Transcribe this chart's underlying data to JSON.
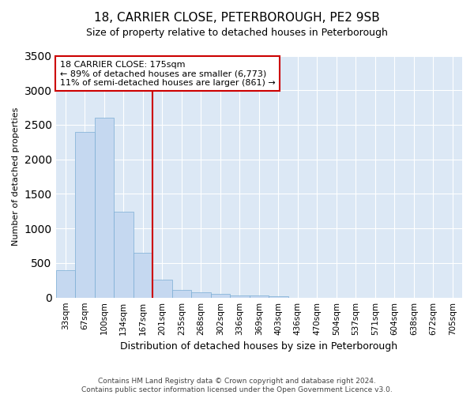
{
  "title": "18, CARRIER CLOSE, PETERBOROUGH, PE2 9SB",
  "subtitle": "Size of property relative to detached houses in Peterborough",
  "xlabel": "Distribution of detached houses by size in Peterborough",
  "ylabel": "Number of detached properties",
  "footer_line1": "Contains HM Land Registry data © Crown copyright and database right 2024.",
  "footer_line2": "Contains public sector information licensed under the Open Government Licence v3.0.",
  "categories": [
    "33sqm",
    "67sqm",
    "100sqm",
    "134sqm",
    "167sqm",
    "201sqm",
    "235sqm",
    "268sqm",
    "302sqm",
    "336sqm",
    "369sqm",
    "403sqm",
    "436sqm",
    "470sqm",
    "504sqm",
    "537sqm",
    "571sqm",
    "604sqm",
    "638sqm",
    "672sqm",
    "705sqm"
  ],
  "values": [
    395,
    2400,
    2600,
    1240,
    650,
    255,
    110,
    75,
    55,
    35,
    25,
    18,
    0,
    0,
    0,
    0,
    0,
    0,
    0,
    0,
    0
  ],
  "bar_color": "#c5d8f0",
  "bar_edge_color": "#7aadd4",
  "background_color": "#dce8f5",
  "grid_color": "#ffffff",
  "vline_color": "#cc0000",
  "annotation_text": "18 CARRIER CLOSE: 175sqm\n← 89% of detached houses are smaller (6,773)\n11% of semi-detached houses are larger (861) →",
  "annotation_box_color": "#cc0000",
  "ylim": [
    0,
    3500
  ],
  "yticks": [
    0,
    500,
    1000,
    1500,
    2000,
    2500,
    3000,
    3500
  ],
  "title_fontsize": 11,
  "subtitle_fontsize": 9,
  "ylabel_fontsize": 8,
  "xlabel_fontsize": 9
}
